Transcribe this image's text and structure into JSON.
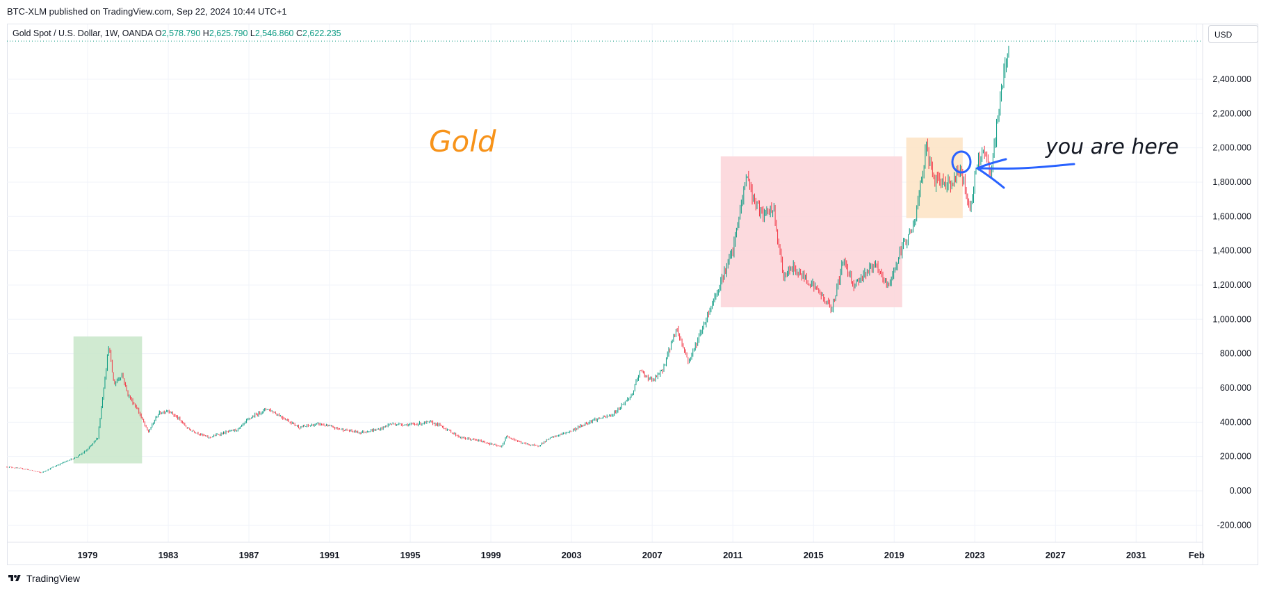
{
  "header": {
    "published_line": "BTC-XLM published on TradingView.com, Sep 22, 2024 10:44 UTC+1"
  },
  "legend": {
    "symbol": "Gold Spot / U.S. Dollar, 1W, OANDA",
    "open_label": "O",
    "open_value": "2,578.790",
    "high_label": "H",
    "high_value": "2,625.790",
    "low_label": "L",
    "low_value": "2,546.860",
    "close_label": "C",
    "close_value": "2,622.235"
  },
  "currency_button": "USD",
  "footer": {
    "brand": "TradingView"
  },
  "colors": {
    "up": "#089981",
    "down": "#f23645",
    "annotation_blue": "#2962ff",
    "title_orange": "#f7931a"
  },
  "chart_data": {
    "type": "line",
    "title": "Gold",
    "series": [
      {
        "name": "Gold Spot / U.S. Dollar, 1W",
        "x": [
          1975.0,
          1976.0,
          1976.7,
          1977.5,
          1978.5,
          1979.0,
          1979.5,
          1980.05,
          1980.3,
          1980.7,
          1981.0,
          1981.5,
          1982.0,
          1982.5,
          1983.0,
          1983.5,
          1984.0,
          1985.0,
          1985.5,
          1986.5,
          1987.0,
          1987.9,
          1988.5,
          1989.5,
          1990.5,
          1991.5,
          1992.5,
          1993.5,
          1994.0,
          1995.0,
          1996.0,
          1996.5,
          1997.5,
          1998.5,
          1999.5,
          1999.8,
          2000.5,
          2001.3,
          2002.0,
          2003.0,
          2004.0,
          2005.0,
          2006.0,
          2006.4,
          2007.0,
          2007.5,
          2008.2,
          2008.8,
          2009.5,
          2010.0,
          2010.5,
          2011.0,
          2011.7,
          2012.0,
          2012.5,
          2013.0,
          2013.5,
          2014.0,
          2014.5,
          2015.0,
          2015.9,
          2016.5,
          2017.0,
          2018.0,
          2018.7,
          2019.5,
          2020.0,
          2020.6,
          2021.0,
          2021.5,
          2022.0,
          2022.2,
          2022.8,
          2023.0,
          2023.4,
          2023.8,
          2024.0,
          2024.3,
          2024.7
        ],
        "values": [
          140,
          125,
          105,
          150,
          200,
          240,
          310,
          850,
          620,
          680,
          560,
          470,
          340,
          450,
          470,
          420,
          360,
          310,
          330,
          360,
          420,
          480,
          440,
          370,
          390,
          360,
          340,
          360,
          390,
          385,
          400,
          380,
          310,
          290,
          255,
          320,
          280,
          260,
          310,
          350,
          410,
          440,
          560,
          700,
          640,
          700,
          950,
          750,
          950,
          1100,
          1250,
          1400,
          1850,
          1700,
          1600,
          1650,
          1250,
          1300,
          1250,
          1200,
          1060,
          1350,
          1200,
          1320,
          1190,
          1450,
          1550,
          2000,
          1800,
          1800,
          1800,
          1900,
          1640,
          1830,
          2000,
          1830,
          2050,
          2320,
          2622
        ]
      }
    ],
    "ylim": [
      -300,
      2720
    ],
    "yticks": [
      "-200.000",
      "0.000",
      "200.000",
      "400.000",
      "600.000",
      "800.000",
      "1,000.000",
      "1,200.000",
      "1,400.000",
      "1,600.000",
      "1,800.000",
      "2,000.000",
      "2,200.000",
      "2,400.000"
    ],
    "ytick_values": [
      -200,
      0,
      200,
      400,
      600,
      800,
      1000,
      1200,
      1400,
      1600,
      1800,
      2000,
      2200,
      2400
    ],
    "xlim": [
      1975.0,
      2034.3
    ],
    "xticks": [
      "1979",
      "1983",
      "1987",
      "1991",
      "1995",
      "1999",
      "2003",
      "2007",
      "2011",
      "2015",
      "2019",
      "2023",
      "2027",
      "2031",
      "Feb"
    ],
    "xtick_values": [
      1979,
      1983,
      1987,
      1991,
      1995,
      1999,
      2003,
      2007,
      2011,
      2015,
      2019,
      2023,
      2027,
      2031,
      2034
    ],
    "highlight_zones": [
      {
        "name": "green",
        "x0": 1978.3,
        "x1": 1981.7,
        "y0": 160,
        "y1": 900,
        "color": "#c8e6c9"
      },
      {
        "name": "red",
        "x0": 2010.4,
        "x1": 2019.4,
        "y0": 1070,
        "y1": 1950,
        "color": "#fcd4d8"
      },
      {
        "name": "orange",
        "x0": 2019.6,
        "x1": 2022.4,
        "y0": 1590,
        "y1": 2060,
        "color": "#fde3c3"
      }
    ],
    "annotation": {
      "text": "you are here",
      "x": 2022.5,
      "y": 1830
    },
    "grid": true
  }
}
